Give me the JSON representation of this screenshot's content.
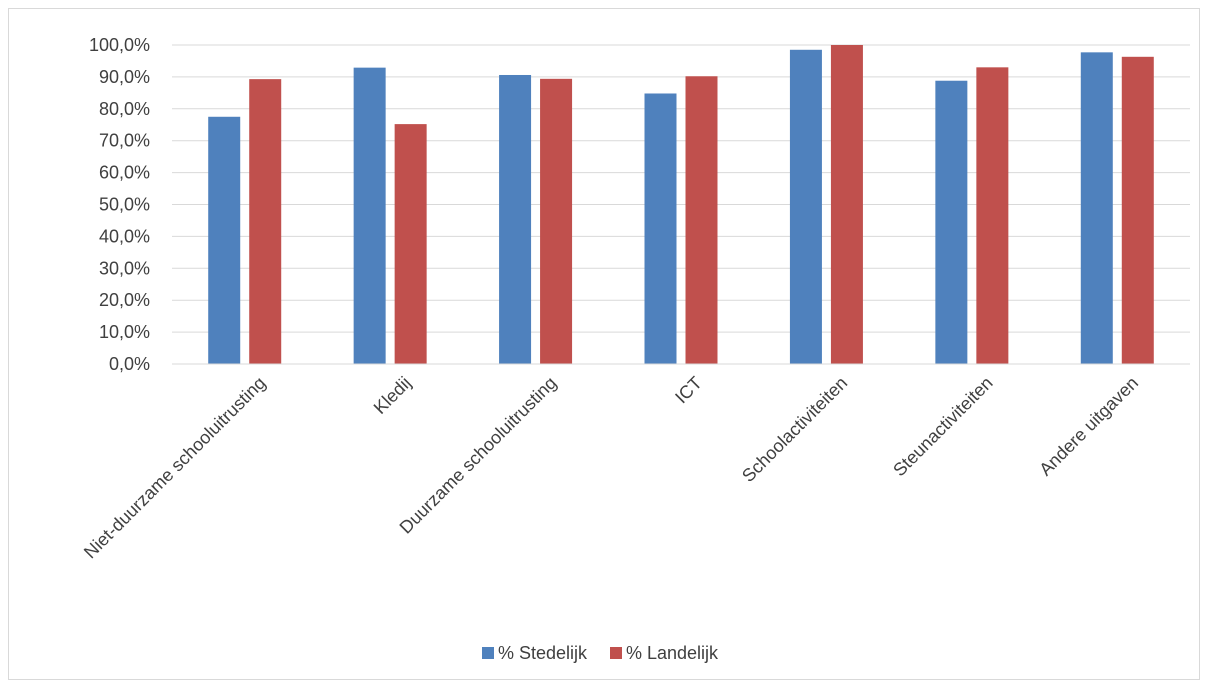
{
  "chart_data": {
    "type": "bar",
    "categories": [
      "Niet-duurzame schooluitrusting",
      "Kledij",
      "Duurzame schooluitrusting",
      "ICT",
      "Schoolactiviteiten",
      "Steunactiviteiten",
      "Andere uitgaven"
    ],
    "series": [
      {
        "name": "% Stedelijk",
        "color": "#4f81bd",
        "values": [
          77.5,
          92.9,
          90.6,
          84.8,
          98.5,
          88.8,
          97.7
        ]
      },
      {
        "name": "% Landelijk",
        "color": "#c0504d",
        "values": [
          89.3,
          75.2,
          89.4,
          90.2,
          100.0,
          93.0,
          96.3
        ]
      }
    ],
    "ylim": [
      0,
      100
    ],
    "yticks": [
      "0,0%",
      "10,0%",
      "20,0%",
      "30,0%",
      "40,0%",
      "50,0%",
      "60,0%",
      "70,0%",
      "80,0%",
      "90,0%",
      "100,0%"
    ],
    "grid": true,
    "legend": "bottom"
  }
}
